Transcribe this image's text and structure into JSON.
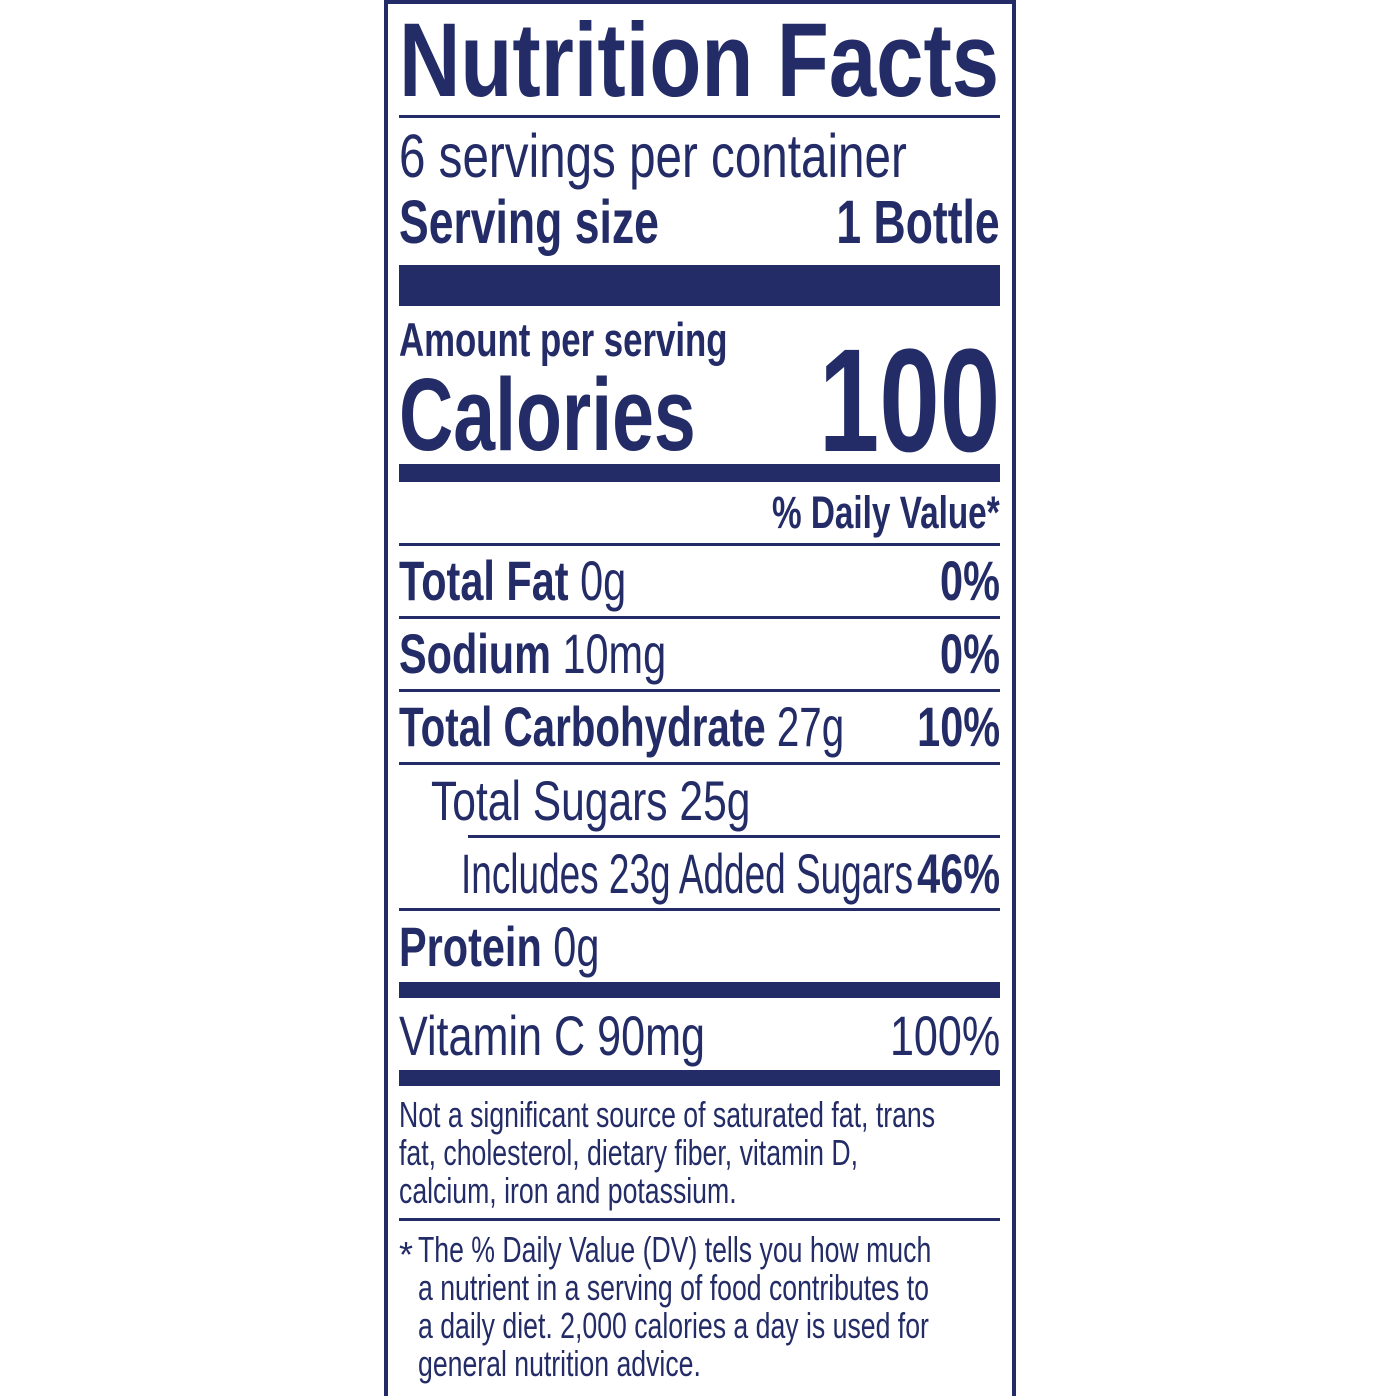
{
  "title": "Nutrition Facts",
  "servings_per_container": "6 servings per container",
  "serving_size": {
    "label": "Serving size",
    "value": "1 Bottle"
  },
  "amount_per_serving": "Amount per serving",
  "calories": {
    "label": "Calories",
    "value": "100"
  },
  "daily_value_header": "% Daily Value*",
  "nutrients": [
    {
      "name": "Total Fat",
      "amount": "0g",
      "dv": "0%"
    },
    {
      "name": "Sodium",
      "amount": "10mg",
      "dv": "0%"
    },
    {
      "name": "Total Carbohydrate",
      "amount": "27g",
      "dv": "10%"
    },
    {
      "name": "Total Sugars 25g",
      "amount": "",
      "dv": ""
    },
    {
      "name": "Includes 23g Added Sugars",
      "amount": "",
      "dv": "46%"
    },
    {
      "name": "Protein",
      "amount": "0g",
      "dv": ""
    }
  ],
  "vitamins": [
    {
      "name": "Vitamin C 90mg",
      "dv": "100%"
    }
  ],
  "note_lines": [
    "Not a significant source of saturated fat, trans",
    "fat, cholesterol, dietary fiber, vitamin D,",
    "calcium, iron and potassium."
  ],
  "footnote": {
    "asterisk": "*",
    "lines": [
      "The % Daily Value (DV) tells you how much",
      "a nutrient in a serving of food contributes to",
      "a daily diet. 2,000 calories a day is used for",
      "general nutrition advice."
    ]
  },
  "colors": {
    "ink": "#232c66",
    "background": "#ffffff"
  }
}
